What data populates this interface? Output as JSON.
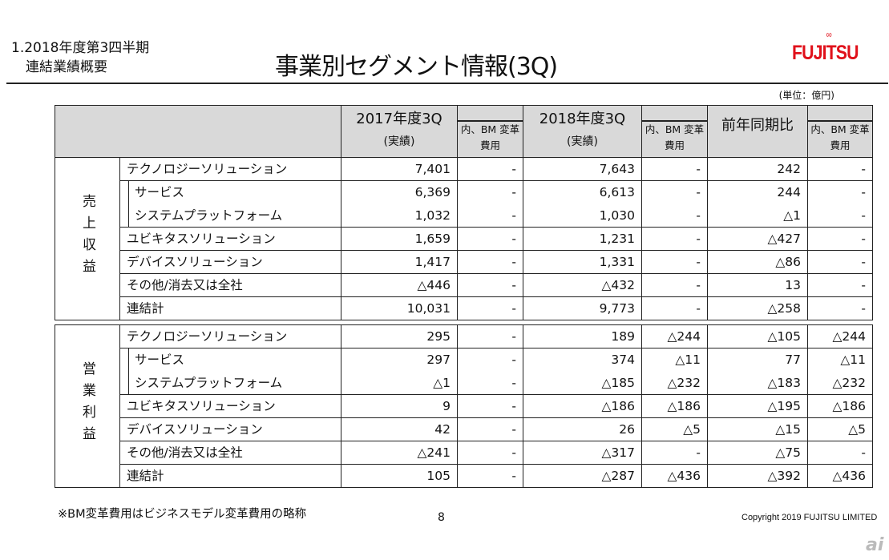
{
  "header": {
    "section_line1": "1.2018年度第3四半期",
    "section_line2": "連結業績概要",
    "title": "事業別セグメント情報(3Q)",
    "logo": "FUJITSU",
    "unit": "(単位：億円)"
  },
  "table": {
    "columns": [
      {
        "main": "2017年度3Q",
        "sub": "(実績)",
        "bm": "内、BM 変革費用"
      },
      {
        "main": "2018年度3Q",
        "sub": "(実績)",
        "bm": "内、BM 変革費用"
      },
      {
        "main": "前年同期比",
        "sub": "",
        "bm": "内、BM 変革費用"
      }
    ],
    "sections": [
      {
        "label": "売上収益",
        "rows": [
          {
            "name": "テクノロジーソリューション",
            "indent": false,
            "values": [
              "7,401",
              "-",
              "7,643",
              "-",
              "242",
              "-"
            ]
          },
          {
            "name": "サービス",
            "indent": true,
            "values": [
              "6,369",
              "-",
              "6,613",
              "-",
              "244",
              "-"
            ]
          },
          {
            "name": "システムプラットフォーム",
            "indent": true,
            "values": [
              "1,032",
              "-",
              "1,030",
              "-",
              "△1",
              "-"
            ]
          },
          {
            "name": "ユビキタスソリューション",
            "indent": false,
            "values": [
              "1,659",
              "-",
              "1,231",
              "-",
              "△427",
              "-"
            ]
          },
          {
            "name": "デバイスソリューション",
            "indent": false,
            "values": [
              "1,417",
              "-",
              "1,331",
              "-",
              "△86",
              "-"
            ]
          },
          {
            "name": "その他/消去又は全社",
            "indent": false,
            "values": [
              "△446",
              "-",
              "△432",
              "-",
              "13",
              "-"
            ]
          },
          {
            "name": "連結計",
            "indent": false,
            "values": [
              "10,031",
              "-",
              "9,773",
              "-",
              "△258",
              "-"
            ]
          }
        ]
      },
      {
        "label": "営業利益",
        "rows": [
          {
            "name": "テクノロジーソリューション",
            "indent": false,
            "values": [
              "295",
              "-",
              "189",
              "△244",
              "△105",
              "△244"
            ]
          },
          {
            "name": "サービス",
            "indent": true,
            "values": [
              "297",
              "-",
              "374",
              "△11",
              "77",
              "△11"
            ]
          },
          {
            "name": "システムプラットフォーム",
            "indent": true,
            "values": [
              "△1",
              "-",
              "△185",
              "△232",
              "△183",
              "△232"
            ]
          },
          {
            "name": "ユビキタスソリューション",
            "indent": false,
            "values": [
              "9",
              "-",
              "△186",
              "△186",
              "△195",
              "△186"
            ]
          },
          {
            "name": "デバイスソリューション",
            "indent": false,
            "values": [
              "42",
              "-",
              "26",
              "△5",
              "△15",
              "△5"
            ]
          },
          {
            "name": "その他/消去又は全社",
            "indent": false,
            "values": [
              "△241",
              "-",
              "△317",
              "-",
              "△75",
              "-"
            ]
          },
          {
            "name": "連結計",
            "indent": false,
            "values": [
              "105",
              "-",
              "△287",
              "△436",
              "△392",
              "△436"
            ]
          }
        ]
      }
    ]
  },
  "footer": {
    "note": "※BM変革費用はビジネスモデル変革費用の略称",
    "page": "8",
    "copyright": "Copyright 2019 FUJITSU LIMITED",
    "watermark": "ai"
  }
}
